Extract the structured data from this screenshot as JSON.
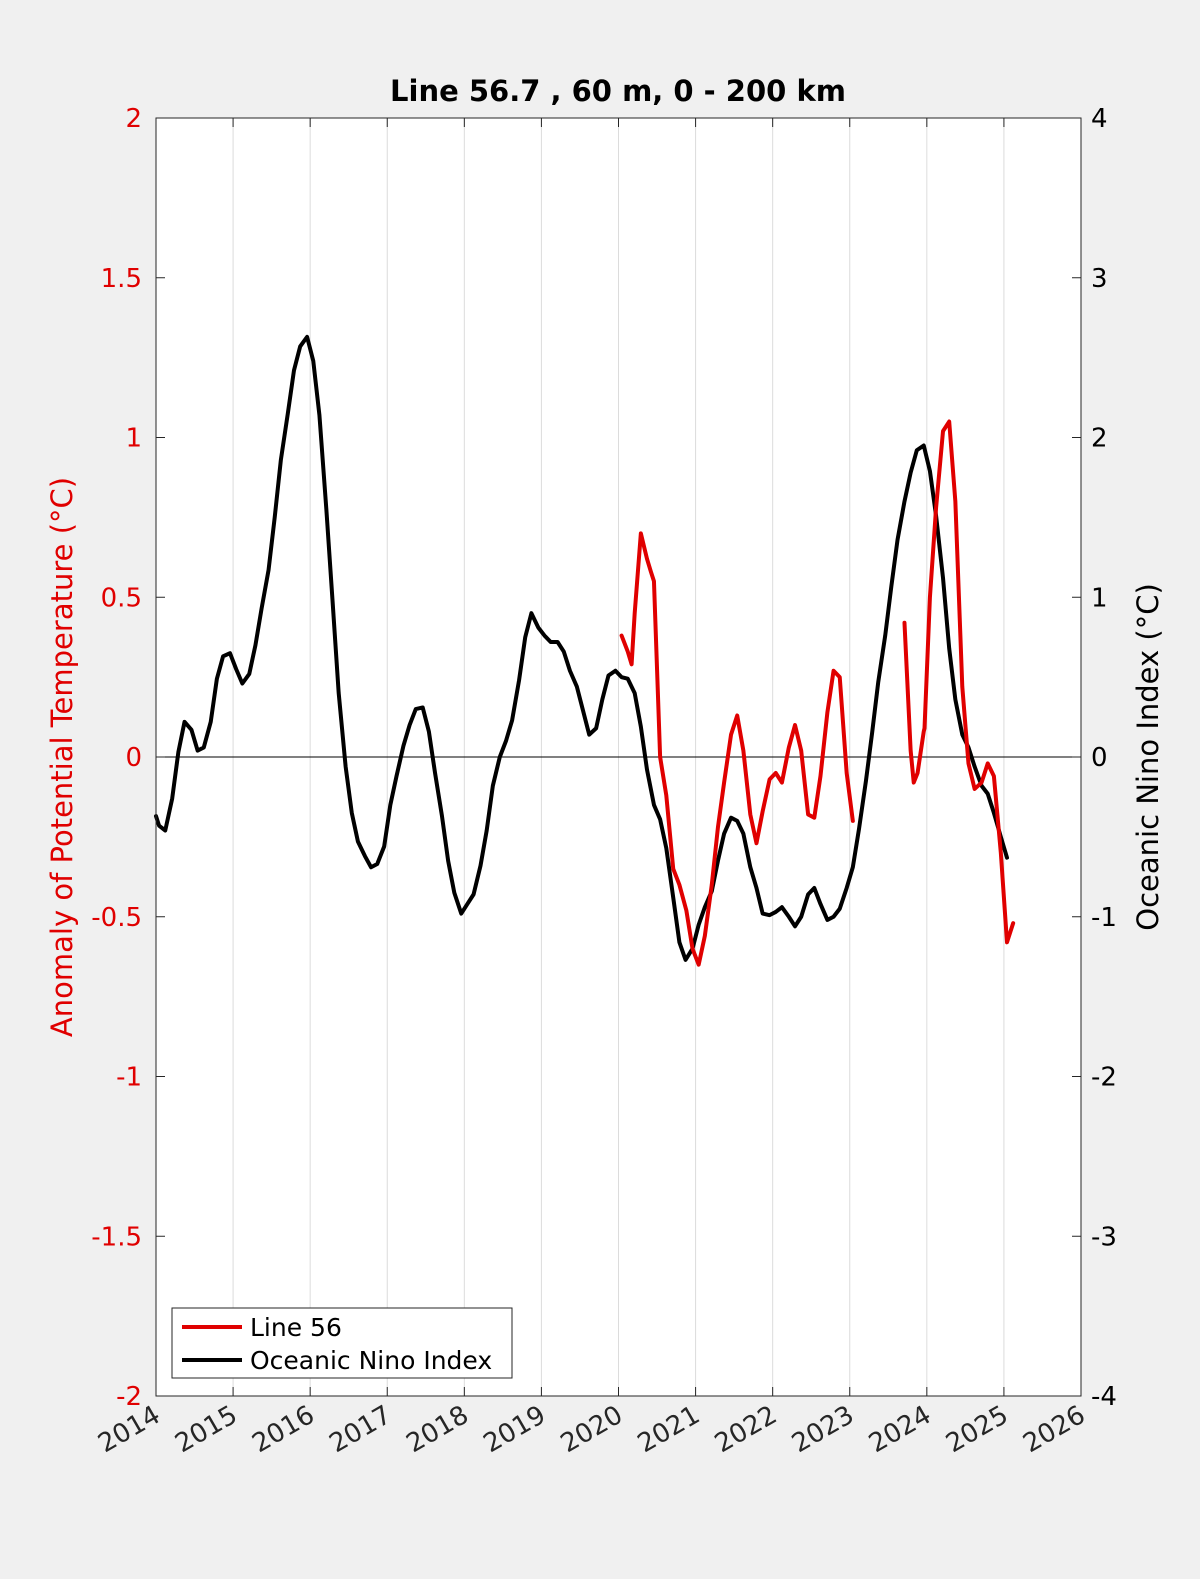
{
  "chart_data": {
    "type": "line",
    "title": "Line 56.7 , 60 m, 0 - 200 km",
    "ylabel_left": "Anomaly of Potential Temperature (°C)",
    "ylabel_right": "Oceanic Nino Index (°C)",
    "xlim": [
      2014,
      2026
    ],
    "ylim_left": [
      -2,
      2
    ],
    "ylim_right": [
      -4,
      4
    ],
    "x_ticks": [
      "2014",
      "2015",
      "2016",
      "2017",
      "2018",
      "2019",
      "2020",
      "2021",
      "2022",
      "2023",
      "2024",
      "2025",
      "2026"
    ],
    "y_ticks_left": [
      "2",
      "1.5",
      "1",
      "0.5",
      "0",
      "-0.5",
      "-1",
      "-1.5",
      "-2"
    ],
    "y_ticks_right": [
      "4",
      "3",
      "2",
      "1",
      "0",
      "-1",
      "-2",
      "-3",
      "-4"
    ],
    "grid_x": true,
    "zero_line": 0,
    "legend_position": "bottom-left",
    "colors": {
      "left_axis": "#e00000",
      "line56": "#e00000",
      "oni": "#000000",
      "grid": "#dcdcdc"
    },
    "series": [
      {
        "name": "Line 56",
        "axis": "left",
        "color": "#e00000",
        "segments": [
          [
            [
              2020.04,
              0.38
            ],
            [
              2020.12,
              0.33
            ],
            [
              2020.17,
              0.29
            ],
            [
              2020.21,
              0.45
            ],
            [
              2020.29,
              0.7
            ],
            [
              2020.37,
              0.62
            ],
            [
              2020.42,
              0.58
            ],
            [
              2020.46,
              0.55
            ],
            [
              2020.54,
              0.0
            ],
            [
              2020.62,
              -0.12
            ],
            [
              2020.71,
              -0.35
            ],
            [
              2020.79,
              -0.4
            ],
            [
              2020.88,
              -0.48
            ],
            [
              2020.96,
              -0.6
            ],
            [
              2021.04,
              -0.65
            ],
            [
              2021.12,
              -0.56
            ],
            [
              2021.21,
              -0.4
            ],
            [
              2021.29,
              -0.22
            ],
            [
              2021.37,
              -0.08
            ],
            [
              2021.46,
              0.07
            ],
            [
              2021.54,
              0.13
            ],
            [
              2021.62,
              0.02
            ],
            [
              2021.71,
              -0.18
            ],
            [
              2021.79,
              -0.27
            ],
            [
              2021.87,
              -0.17
            ],
            [
              2021.96,
              -0.07
            ],
            [
              2022.04,
              -0.05
            ],
            [
              2022.12,
              -0.08
            ],
            [
              2022.21,
              0.03
            ],
            [
              2022.29,
              0.1
            ],
            [
              2022.37,
              0.02
            ],
            [
              2022.46,
              -0.18
            ],
            [
              2022.54,
              -0.19
            ],
            [
              2022.62,
              -0.06
            ],
            [
              2022.71,
              0.14
            ],
            [
              2022.79,
              0.27
            ],
            [
              2022.87,
              0.25
            ],
            [
              2022.96,
              -0.05
            ],
            [
              2023.04,
              -0.2
            ]
          ],
          [
            [
              2023.71,
              0.42
            ],
            [
              2023.79,
              0.02
            ],
            [
              2023.83,
              -0.08
            ],
            [
              2023.88,
              -0.05
            ],
            [
              2023.96,
              0.08
            ],
            [
              2023.97,
              0.09
            ],
            [
              2024.04,
              0.5
            ],
            [
              2024.12,
              0.78
            ],
            [
              2024.21,
              1.02
            ],
            [
              2024.29,
              1.05
            ],
            [
              2024.37,
              0.8
            ],
            [
              2024.46,
              0.22
            ],
            [
              2024.54,
              -0.02
            ],
            [
              2024.62,
              -0.1
            ],
            [
              2024.71,
              -0.08
            ],
            [
              2024.79,
              -0.02
            ],
            [
              2024.87,
              -0.06
            ],
            [
              2024.96,
              -0.3
            ],
            [
              2025.04,
              -0.58
            ],
            [
              2025.12,
              -0.52
            ]
          ]
        ]
      },
      {
        "name": "Oceanic Nino Index",
        "axis": "right",
        "color": "#000000",
        "segments": [
          [
            [
              2014.0,
              -0.37
            ],
            [
              2014.04,
              -0.43
            ],
            [
              2014.12,
              -0.46
            ],
            [
              2014.21,
              -0.26
            ],
            [
              2014.29,
              0.03
            ],
            [
              2014.37,
              0.22
            ],
            [
              2014.46,
              0.17
            ],
            [
              2014.54,
              0.04
            ],
            [
              2014.62,
              0.06
            ],
            [
              2014.71,
              0.22
            ],
            [
              2014.79,
              0.49
            ],
            [
              2014.87,
              0.63
            ],
            [
              2014.96,
              0.65
            ],
            [
              2015.04,
              0.55
            ],
            [
              2015.12,
              0.46
            ],
            [
              2015.21,
              0.52
            ],
            [
              2015.29,
              0.7
            ],
            [
              2015.37,
              0.93
            ],
            [
              2015.46,
              1.17
            ],
            [
              2015.54,
              1.5
            ],
            [
              2015.62,
              1.86
            ],
            [
              2015.71,
              2.15
            ],
            [
              2015.79,
              2.42
            ],
            [
              2015.87,
              2.57
            ],
            [
              2015.96,
              2.63
            ],
            [
              2016.04,
              2.48
            ],
            [
              2016.12,
              2.14
            ],
            [
              2016.21,
              1.55
            ],
            [
              2016.29,
              0.98
            ],
            [
              2016.37,
              0.4
            ],
            [
              2016.46,
              -0.06
            ],
            [
              2016.54,
              -0.35
            ],
            [
              2016.62,
              -0.53
            ],
            [
              2016.71,
              -0.62
            ],
            [
              2016.79,
              -0.69
            ],
            [
              2016.87,
              -0.67
            ],
            [
              2016.96,
              -0.56
            ],
            [
              2017.04,
              -0.3
            ],
            [
              2017.12,
              -0.12
            ],
            [
              2017.21,
              0.07
            ],
            [
              2017.29,
              0.2
            ],
            [
              2017.37,
              0.3
            ],
            [
              2017.46,
              0.31
            ],
            [
              2017.54,
              0.16
            ],
            [
              2017.62,
              -0.1
            ],
            [
              2017.71,
              -0.37
            ],
            [
              2017.79,
              -0.65
            ],
            [
              2017.87,
              -0.85
            ],
            [
              2017.96,
              -0.98
            ],
            [
              2018.04,
              -0.92
            ],
            [
              2018.12,
              -0.86
            ],
            [
              2018.21,
              -0.68
            ],
            [
              2018.29,
              -0.46
            ],
            [
              2018.37,
              -0.18
            ],
            [
              2018.46,
              0.0
            ],
            [
              2018.54,
              0.1
            ],
            [
              2018.62,
              0.23
            ],
            [
              2018.71,
              0.48
            ],
            [
              2018.79,
              0.75
            ],
            [
              2018.87,
              0.9
            ],
            [
              2018.96,
              0.81
            ],
            [
              2019.04,
              0.76
            ],
            [
              2019.12,
              0.72
            ],
            [
              2019.21,
              0.72
            ],
            [
              2019.29,
              0.66
            ],
            [
              2019.37,
              0.54
            ],
            [
              2019.46,
              0.44
            ],
            [
              2019.54,
              0.29
            ],
            [
              2019.62,
              0.14
            ],
            [
              2019.71,
              0.18
            ],
            [
              2019.79,
              0.36
            ],
            [
              2019.87,
              0.51
            ],
            [
              2019.96,
              0.54
            ],
            [
              2020.04,
              0.5
            ],
            [
              2020.12,
              0.49
            ],
            [
              2020.21,
              0.4
            ],
            [
              2020.29,
              0.19
            ],
            [
              2020.37,
              -0.08
            ],
            [
              2020.46,
              -0.3
            ],
            [
              2020.54,
              -0.39
            ],
            [
              2020.62,
              -0.57
            ],
            [
              2020.71,
              -0.88
            ],
            [
              2020.79,
              -1.16
            ],
            [
              2020.87,
              -1.27
            ],
            [
              2020.96,
              -1.2
            ],
            [
              2021.04,
              -1.05
            ],
            [
              2021.12,
              -0.94
            ],
            [
              2021.21,
              -0.84
            ],
            [
              2021.29,
              -0.65
            ],
            [
              2021.37,
              -0.48
            ],
            [
              2021.46,
              -0.38
            ],
            [
              2021.54,
              -0.4
            ],
            [
              2021.62,
              -0.48
            ],
            [
              2021.71,
              -0.69
            ],
            [
              2021.79,
              -0.82
            ],
            [
              2021.87,
              -0.98
            ],
            [
              2021.96,
              -0.99
            ],
            [
              2022.04,
              -0.97
            ],
            [
              2022.12,
              -0.94
            ],
            [
              2022.21,
              -1.0
            ],
            [
              2022.29,
              -1.06
            ],
            [
              2022.37,
              -1.0
            ],
            [
              2022.46,
              -0.86
            ],
            [
              2022.54,
              -0.82
            ],
            [
              2022.62,
              -0.92
            ],
            [
              2022.71,
              -1.02
            ],
            [
              2022.79,
              -1.0
            ],
            [
              2022.87,
              -0.95
            ],
            [
              2022.96,
              -0.82
            ],
            [
              2023.04,
              -0.69
            ],
            [
              2023.12,
              -0.45
            ],
            [
              2023.21,
              -0.15
            ],
            [
              2023.29,
              0.15
            ],
            [
              2023.37,
              0.47
            ],
            [
              2023.46,
              0.76
            ],
            [
              2023.54,
              1.07
            ],
            [
              2023.62,
              1.36
            ],
            [
              2023.71,
              1.6
            ],
            [
              2023.79,
              1.78
            ],
            [
              2023.87,
              1.92
            ],
            [
              2023.96,
              1.95
            ],
            [
              2024.04,
              1.79
            ],
            [
              2024.12,
              1.51
            ],
            [
              2024.21,
              1.12
            ],
            [
              2024.29,
              0.68
            ],
            [
              2024.37,
              0.36
            ],
            [
              2024.46,
              0.14
            ],
            [
              2024.54,
              0.06
            ],
            [
              2024.62,
              -0.06
            ],
            [
              2024.71,
              -0.18
            ],
            [
              2024.79,
              -0.23
            ],
            [
              2024.87,
              -0.35
            ],
            [
              2024.96,
              -0.5
            ],
            [
              2025.04,
              -0.63
            ]
          ]
        ]
      }
    ]
  }
}
